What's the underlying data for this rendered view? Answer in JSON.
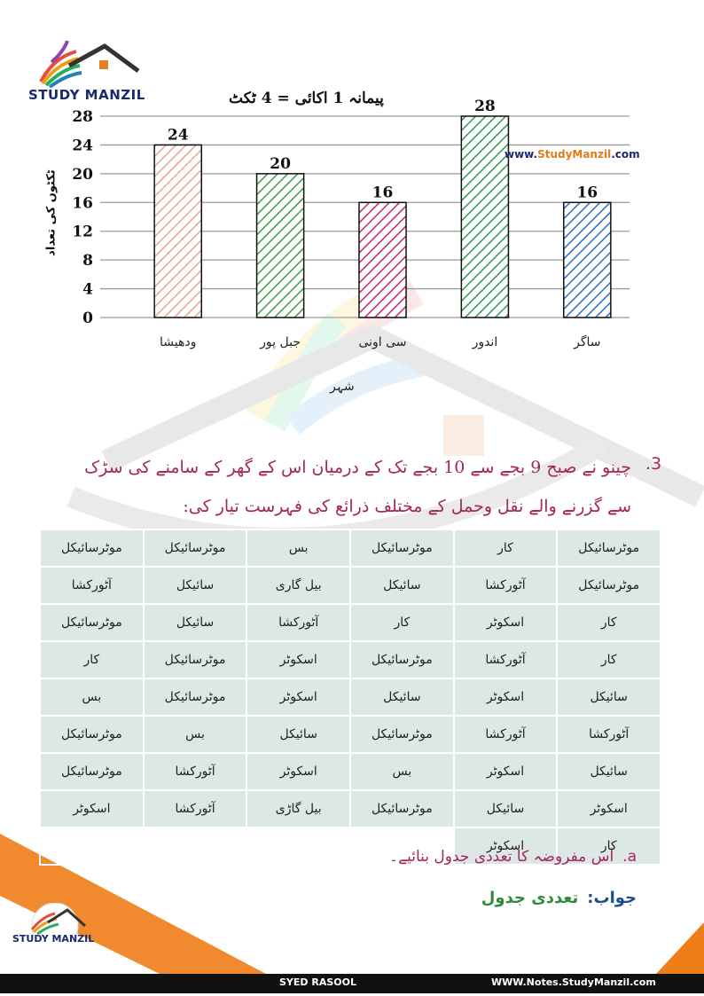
{
  "brand": {
    "logo_text": "STUDY MANZIL",
    "website_mark": "www.",
    "website_accent": "StudyManzil",
    "website_tld": ".com"
  },
  "chart_data": {
    "type": "bar",
    "title": "پیمانہ 1 اکائی = 4 ٹکٹ",
    "ylabel": "ٹکٹوں کی تعداد",
    "xlabel": "شہر",
    "ylim": [
      0,
      28
    ],
    "yticks": [
      0,
      4,
      8,
      12,
      16,
      20,
      24,
      28
    ],
    "categories": [
      "ودھیشا",
      "جبل پور",
      "سی اونی",
      "اندور",
      "ساگر"
    ],
    "values": [
      24,
      20,
      16,
      28,
      16
    ],
    "bar_colors": [
      "#e8a48e",
      "#3d9c4a",
      "#c8266a",
      "#2f9a55",
      "#2a6fc2"
    ],
    "grid": true
  },
  "question": {
    "number": ".3",
    "text": "چینو نے صبح 9 بجے سے 10 بجے تک کے درمیان اس کے گھر کے سامنے کی سڑک سے گزرنے والے نقل وحمل کے مختلف ذرائع کی فہرست تیار کی:"
  },
  "table": {
    "rows": [
      [
        "موٹرسائیکل",
        "کار",
        "موٹرسائیکل",
        "بس",
        "موٹرسائیکل",
        "موٹرسائیکل"
      ],
      [
        "موٹرسائیکل",
        "آٹورکشا",
        "سائیکل",
        "بیل گاری",
        "سائیکل",
        "آٹورکشا"
      ],
      [
        "کار",
        "اسکوٹر",
        "کار",
        "آٹورکشا",
        "سائیکل",
        "موٹرسائیکل"
      ],
      [
        "کار",
        "آٹورکشا",
        "موٹرسائیکل",
        "اسکوٹر",
        "موٹرسائیکل",
        "کار"
      ],
      [
        "سائیکل",
        "اسکوٹر",
        "سائیکل",
        "اسکوٹر",
        "موٹرسائیکل",
        "بس"
      ],
      [
        "آٹورکشا",
        "آٹورکشا",
        "موٹرسائیکل",
        "سائیکل",
        "بس",
        "موٹرسائیکل"
      ],
      [
        "سائیکل",
        "اسکوٹر",
        "بس",
        "اسکوٹر",
        "آٹورکشا",
        "موٹرسائیکل"
      ],
      [
        "اسکوٹر",
        "سائیکل",
        "موٹرسائیکل",
        "بیل گاڑی",
        "آٹورکشا",
        "اسکوٹر"
      ],
      [
        "کار",
        "اسکوٹر",
        "",
        "",
        "",
        ""
      ]
    ]
  },
  "part_a": {
    "label": "a.",
    "text": "اس مفروضہ کا تعددی جدول بنائیے۔"
  },
  "answer": {
    "label": "جواب:",
    "text": "تعددی جدول"
  },
  "footer": {
    "author": "SYED RASOOL",
    "site": "WWW.Notes.StudyManzil.com"
  }
}
